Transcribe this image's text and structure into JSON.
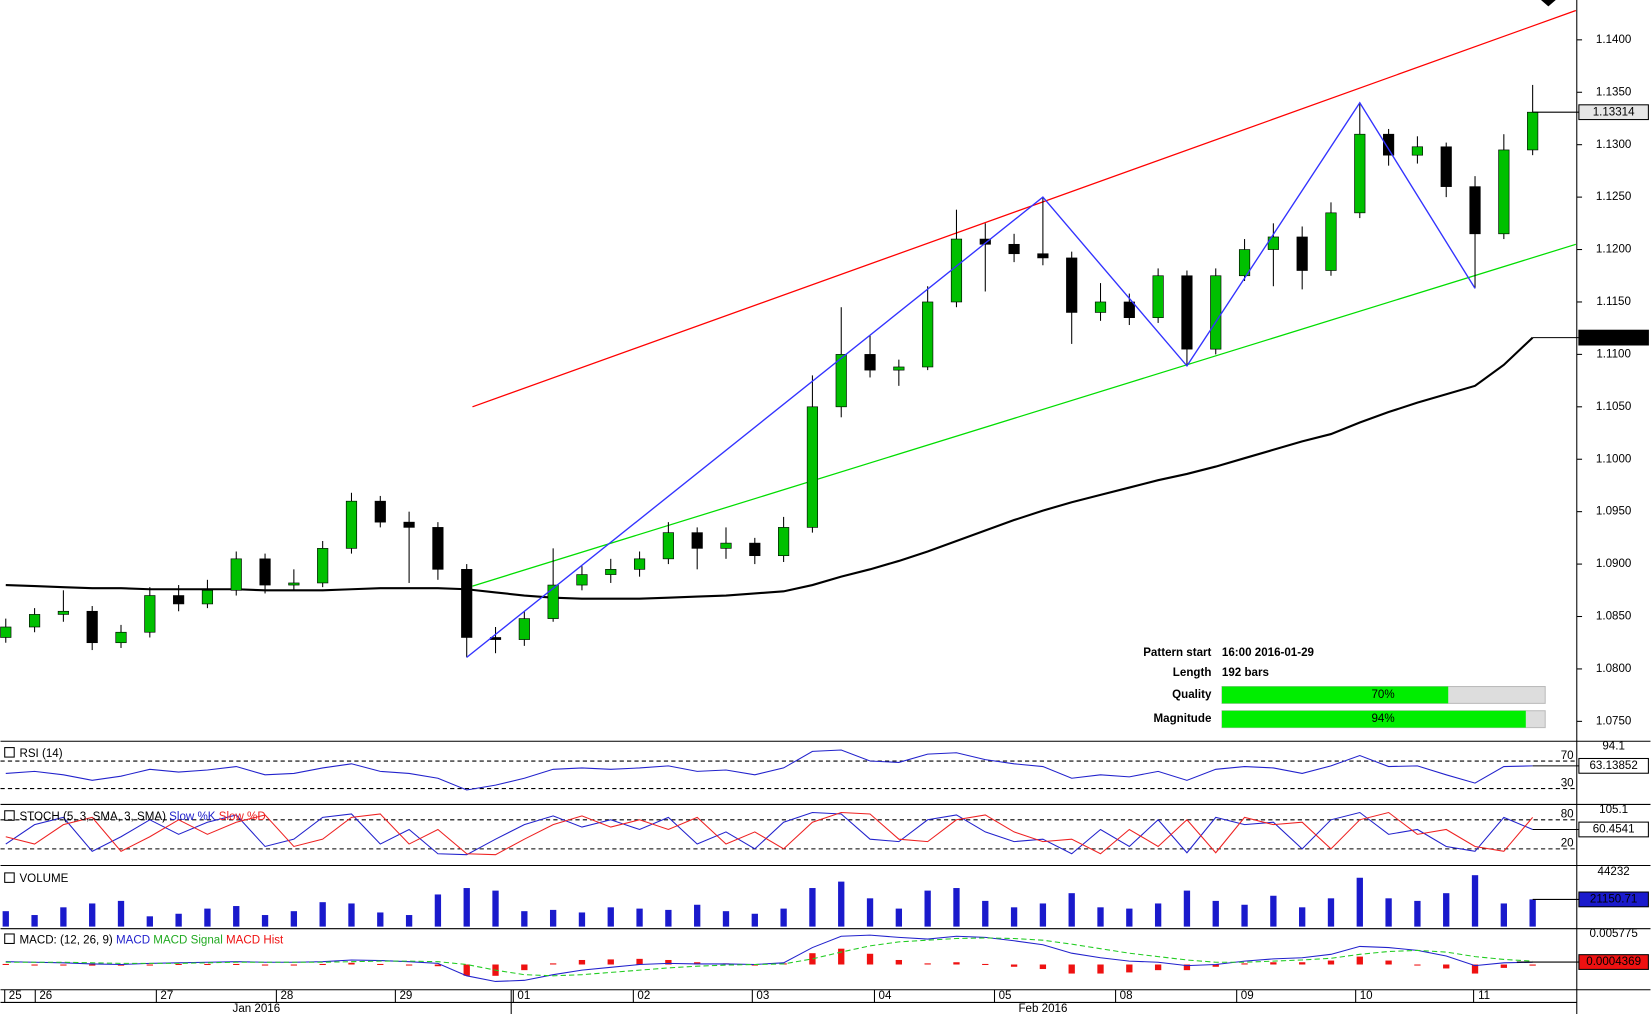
{
  "chart_data": [
    {
      "type": "candlestick",
      "ohlc": [
        [
          1.083,
          1.0848,
          1.0825,
          1.084
        ],
        [
          1.084,
          1.0858,
          1.0835,
          1.0852
        ],
        [
          1.0852,
          1.0875,
          1.0845,
          1.0855
        ],
        [
          1.0855,
          1.086,
          1.0818,
          1.0825
        ],
        [
          1.0825,
          1.0842,
          1.082,
          1.0835
        ],
        [
          1.0835,
          1.0878,
          1.083,
          1.087
        ],
        [
          1.087,
          1.088,
          1.0855,
          1.0862
        ],
        [
          1.0862,
          1.0885,
          1.0858,
          1.0875
        ],
        [
          1.0875,
          1.0912,
          1.087,
          1.0905
        ],
        [
          1.0905,
          1.091,
          1.0872,
          1.088
        ],
        [
          1.088,
          1.0895,
          1.0875,
          1.0882
        ],
        [
          1.0882,
          1.0922,
          1.0878,
          1.0915
        ],
        [
          1.0915,
          1.0968,
          1.091,
          1.096
        ],
        [
          1.096,
          1.0965,
          1.0935,
          1.094
        ],
        [
          1.094,
          1.095,
          1.0882,
          1.0935
        ],
        [
          1.0935,
          1.094,
          1.0885,
          1.0895
        ],
        [
          1.0895,
          1.09,
          1.0811,
          1.083
        ],
        [
          1.083,
          1.084,
          1.0815,
          1.0828
        ],
        [
          1.0828,
          1.0855,
          1.0822,
          1.0848
        ],
        [
          1.0848,
          1.0915,
          1.0845,
          1.088
        ],
        [
          1.088,
          1.0898,
          1.0875,
          1.089
        ],
        [
          1.089,
          1.0905,
          1.0882,
          1.0895
        ],
        [
          1.0895,
          1.0912,
          1.0888,
          1.0905
        ],
        [
          1.0905,
          1.094,
          1.09,
          1.093
        ],
        [
          1.093,
          1.0935,
          1.0895,
          1.0915
        ],
        [
          1.0915,
          1.0935,
          1.0905,
          1.092
        ],
        [
          1.092,
          1.0925,
          1.09,
          1.0908
        ],
        [
          1.0908,
          1.0945,
          1.0902,
          1.0935
        ],
        [
          1.0935,
          1.108,
          1.093,
          1.105
        ],
        [
          1.105,
          1.1145,
          1.104,
          1.11
        ],
        [
          1.11,
          1.1118,
          1.1078,
          1.1085
        ],
        [
          1.1085,
          1.1095,
          1.107,
          1.1088
        ],
        [
          1.1088,
          1.1165,
          1.1085,
          1.115
        ],
        [
          1.115,
          1.1238,
          1.1145,
          1.121
        ],
        [
          1.121,
          1.1225,
          1.116,
          1.1205
        ],
        [
          1.1205,
          1.1215,
          1.1188,
          1.1196
        ],
        [
          1.1196,
          1.125,
          1.1185,
          1.1192
        ],
        [
          1.1192,
          1.1198,
          1.111,
          1.114
        ],
        [
          1.114,
          1.1168,
          1.1132,
          1.115
        ],
        [
          1.115,
          1.1158,
          1.1128,
          1.1135
        ],
        [
          1.1135,
          1.1182,
          1.113,
          1.1175
        ],
        [
          1.1175,
          1.118,
          1.1089,
          1.1105
        ],
        [
          1.1105,
          1.1182,
          1.11,
          1.1175
        ],
        [
          1.1175,
          1.121,
          1.117,
          1.12
        ],
        [
          1.12,
          1.1225,
          1.1165,
          1.1212
        ],
        [
          1.1212,
          1.1222,
          1.1162,
          1.118
        ],
        [
          1.118,
          1.1245,
          1.1175,
          1.1235
        ],
        [
          1.1235,
          1.134,
          1.123,
          1.131
        ],
        [
          1.131,
          1.1315,
          1.128,
          1.129
        ],
        [
          1.129,
          1.1308,
          1.1282,
          1.1298
        ],
        [
          1.1298,
          1.1302,
          1.125,
          1.126
        ],
        [
          1.126,
          1.127,
          1.1163,
          1.1215
        ],
        [
          1.1215,
          1.131,
          1.121,
          1.1295
        ],
        [
          1.1295,
          1.1357,
          1.129,
          1.1331
        ]
      ],
      "up_color": "#00c000",
      "down_color": "#000000",
      "ma": {
        "color": "#000000",
        "values": [
          1.088,
          1.0879,
          1.0878,
          1.0877,
          1.0877,
          1.0876,
          1.0876,
          1.0876,
          1.0876,
          1.0875,
          1.0875,
          1.0875,
          1.0876,
          1.0877,
          1.0877,
          1.0877,
          1.0876,
          1.0873,
          1.087,
          1.0868,
          1.0867,
          1.0867,
          1.0867,
          1.0868,
          1.0869,
          1.087,
          1.0872,
          1.0874,
          1.088,
          1.0888,
          1.0895,
          1.0903,
          1.0912,
          1.0922,
          1.0932,
          1.0942,
          1.0951,
          1.0959,
          1.0966,
          1.0973,
          1.098,
          1.0986,
          1.0993,
          1.1001,
          1.1009,
          1.1017,
          1.1024,
          1.1035,
          1.1045,
          1.1054,
          1.1062,
          1.107,
          1.109,
          1.1116
        ]
      },
      "channel_upper": {
        "color": "#ff0000",
        "x": [
          16.2,
          54.5
        ],
        "values": [
          1.105,
          1.1428
        ]
      },
      "channel_lower": {
        "color": "#00dd00",
        "x": [
          16.2,
          54.5
        ],
        "values": [
          1.0879,
          1.1205
        ]
      },
      "zigzag": {
        "color": "#3333ff",
        "x": [
          16,
          36,
          41,
          47,
          51
        ],
        "values": [
          1.0811,
          1.125,
          1.1089,
          1.134,
          1.1163
        ]
      },
      "last_price_label": "1.13314",
      "ma_label": "1.11160",
      "ylim": [
        1.0732,
        1.1438
      ],
      "yticks": [
        {
          "value": 1.14,
          "label": "1.1400"
        },
        {
          "value": 1.135,
          "label": "1.1350"
        },
        {
          "value": 1.13,
          "label": "1.1300"
        },
        {
          "value": 1.125,
          "label": "1.1250"
        },
        {
          "value": 1.12,
          "label": "1.1200"
        },
        {
          "value": 1.115,
          "label": "1.1150"
        },
        {
          "value": 1.11,
          "label": "1.1100"
        },
        {
          "value": 1.105,
          "label": "1.1050"
        },
        {
          "value": 1.1,
          "label": "1.1000"
        },
        {
          "value": 1.095,
          "label": "1.0950"
        },
        {
          "value": 1.09,
          "label": "1.0900"
        },
        {
          "value": 1.085,
          "label": "1.0850"
        },
        {
          "value": 1.08,
          "label": "1.0800"
        },
        {
          "value": 1.075,
          "label": "1.0750"
        }
      ]
    },
    {
      "type": "line",
      "title": "RSI (14)",
      "ylim": [
        10,
        94.1
      ],
      "yticks": [
        70,
        30
      ],
      "top_label": 94.1,
      "current": 63.13852,
      "series": [
        {
          "color": "#2222cc",
          "values": [
            52,
            55,
            50,
            42,
            48,
            58,
            54,
            57,
            62,
            50,
            52,
            60,
            66,
            55,
            52,
            45,
            28,
            35,
            45,
            58,
            60,
            58,
            60,
            63,
            55,
            57,
            50,
            60,
            84,
            86,
            70,
            68,
            80,
            82,
            72,
            66,
            62,
            45,
            50,
            47,
            55,
            42,
            58,
            62,
            60,
            52,
            63,
            78,
            62,
            63,
            50,
            38,
            62,
            63
          ]
        }
      ]
    },
    {
      "type": "line",
      "title": "STOCH (5, 3, SMA, 3, SMA)",
      "ylim": [
        -10,
        105.1
      ],
      "yticks": [
        80,
        20
      ],
      "top_label": 105.1,
      "current": 60.4541,
      "series": [
        {
          "name": "Slow %K",
          "color": "#2222cc",
          "values": [
            30,
            70,
            85,
            15,
            45,
            80,
            50,
            75,
            90,
            25,
            40,
            85,
            92,
            30,
            60,
            10,
            8,
            40,
            70,
            88,
            65,
            80,
            60,
            85,
            30,
            55,
            20,
            75,
            95,
            92,
            40,
            35,
            80,
            90,
            55,
            35,
            40,
            10,
            60,
            25,
            80,
            12,
            85,
            70,
            75,
            20,
            80,
            95,
            50,
            60,
            25,
            15,
            85,
            60
          ]
        },
        {
          "name": "Slow %D",
          "color": "#ee2222",
          "values": [
            45,
            30,
            70,
            85,
            15,
            45,
            80,
            50,
            75,
            90,
            25,
            40,
            85,
            92,
            30,
            60,
            10,
            8,
            40,
            70,
            88,
            65,
            80,
            60,
            85,
            30,
            55,
            20,
            75,
            95,
            92,
            40,
            35,
            80,
            90,
            55,
            35,
            40,
            10,
            60,
            25,
            80,
            12,
            85,
            70,
            75,
            20,
            80,
            95,
            50,
            60,
            25,
            15,
            85
          ]
        }
      ]
    },
    {
      "type": "bar",
      "title": "VOLUME",
      "ylim": [
        0,
        44232
      ],
      "top_label": 44232,
      "current": 21150.71,
      "color": "#1a1acc",
      "values": [
        12000,
        9000,
        15000,
        18000,
        20000,
        8000,
        10000,
        14000,
        16000,
        9000,
        12000,
        19000,
        18000,
        11000,
        9000,
        25000,
        30000,
        28000,
        12000,
        13000,
        11000,
        15000,
        14000,
        13000,
        17000,
        12000,
        10000,
        14000,
        30000,
        35000,
        22000,
        14000,
        28000,
        30000,
        20000,
        15000,
        18000,
        26000,
        15000,
        14000,
        18000,
        28000,
        20000,
        17000,
        24000,
        15000,
        22000,
        38000,
        22000,
        20000,
        26000,
        40000,
        18000,
        21150.71
      ]
    },
    {
      "type": "macd",
      "title": "MACD: (12, 26, 9)",
      "ylim": [
        -0.0041,
        0.005775
      ],
      "top_label": 0.005775,
      "current": 0.0004369,
      "series": [
        {
          "name": "MACD",
          "color": "#2222cc",
          "values": [
            0.0005,
            0.0004,
            0.0003,
            0.0001,
            0,
            0.0002,
            0.0003,
            0.0004,
            0.0005,
            0.0004,
            0.0004,
            0.0005,
            0.0008,
            0.0007,
            0.0005,
            0.0002,
            -0.002,
            -0.003,
            -0.0028,
            -0.0018,
            -0.001,
            -0.0005,
            0,
            0.0002,
            0.0001,
            0.0001,
            0,
            0.0003,
            0.003,
            0.005,
            0.0052,
            0.0048,
            0.0045,
            0.005,
            0.0048,
            0.0042,
            0.0035,
            0.002,
            0.0012,
            0.0006,
            0.0004,
            -0.0002,
            0,
            0.0006,
            0.001,
            0.0012,
            0.0018,
            0.0032,
            0.003,
            0.0025,
            0.0015,
            -0.0002,
            0.0003,
            0.0004
          ]
        },
        {
          "name": "MACD Signal",
          "color": "#22cc22",
          "values": [
            0.0004,
            0.0004,
            0.0004,
            0.0003,
            0.0002,
            0.0002,
            0.0002,
            0.0003,
            0.0004,
            0.0004,
            0.0004,
            0.0004,
            0.0005,
            0.0006,
            0.0006,
            0.0005,
            0,
            -0.001,
            -0.0018,
            -0.002,
            -0.0018,
            -0.0014,
            -0.001,
            -0.0006,
            -0.0003,
            -0.0001,
            0,
            0.0001,
            0.001,
            0.0022,
            0.0033,
            0.004,
            0.0043,
            0.0046,
            0.0047,
            0.0046,
            0.0043,
            0.0036,
            0.0028,
            0.002,
            0.0014,
            0.0008,
            0.0004,
            0.0004,
            0.0006,
            0.0008,
            0.0011,
            0.0018,
            0.0023,
            0.0025,
            0.0022,
            0.0014,
            0.0009,
            0.0006
          ]
        },
        {
          "name": "MACD Hist",
          "color": "#ee1111",
          "values": [
            0.0001,
            0,
            -0.0001,
            -0.0002,
            -0.0002,
            0,
            0.0001,
            0.0001,
            0.0001,
            0,
            0,
            0.0001,
            0.0003,
            0.0001,
            -0.0001,
            -0.0003,
            -0.002,
            -0.002,
            -0.001,
            0.0002,
            0.0008,
            0.0009,
            0.001,
            0.0008,
            0.0004,
            0.0002,
            0,
            0.0002,
            0.002,
            0.0028,
            0.0019,
            0.0008,
            0.0002,
            0.0004,
            0.0001,
            -0.0004,
            -0.0008,
            -0.0016,
            -0.0016,
            -0.0014,
            -0.001,
            -0.001,
            -0.0004,
            0.0002,
            0.0004,
            0.0004,
            0.0007,
            0.0014,
            0.0007,
            0,
            -0.0007,
            -0.0016,
            -0.0006,
            -0.0002
          ]
        }
      ]
    }
  ],
  "dates": [
    "25",
    "26",
    "27",
    "28",
    "29",
    "01",
    "02",
    "03",
    "04",
    "05",
    "08",
    "09",
    "10",
    "11"
  ],
  "months": [
    "Jan 2016",
    "Feb 2016"
  ],
  "pattern": {
    "start_label": "Pattern start",
    "start": "16:00 2016-01-29",
    "length_label": "Length",
    "length": "192 bars",
    "quality_label": "Quality",
    "quality": 70,
    "quality_text": "70%",
    "magnitude_label": "Magnitude",
    "magnitude": 94,
    "magnitude_text": "94%"
  }
}
